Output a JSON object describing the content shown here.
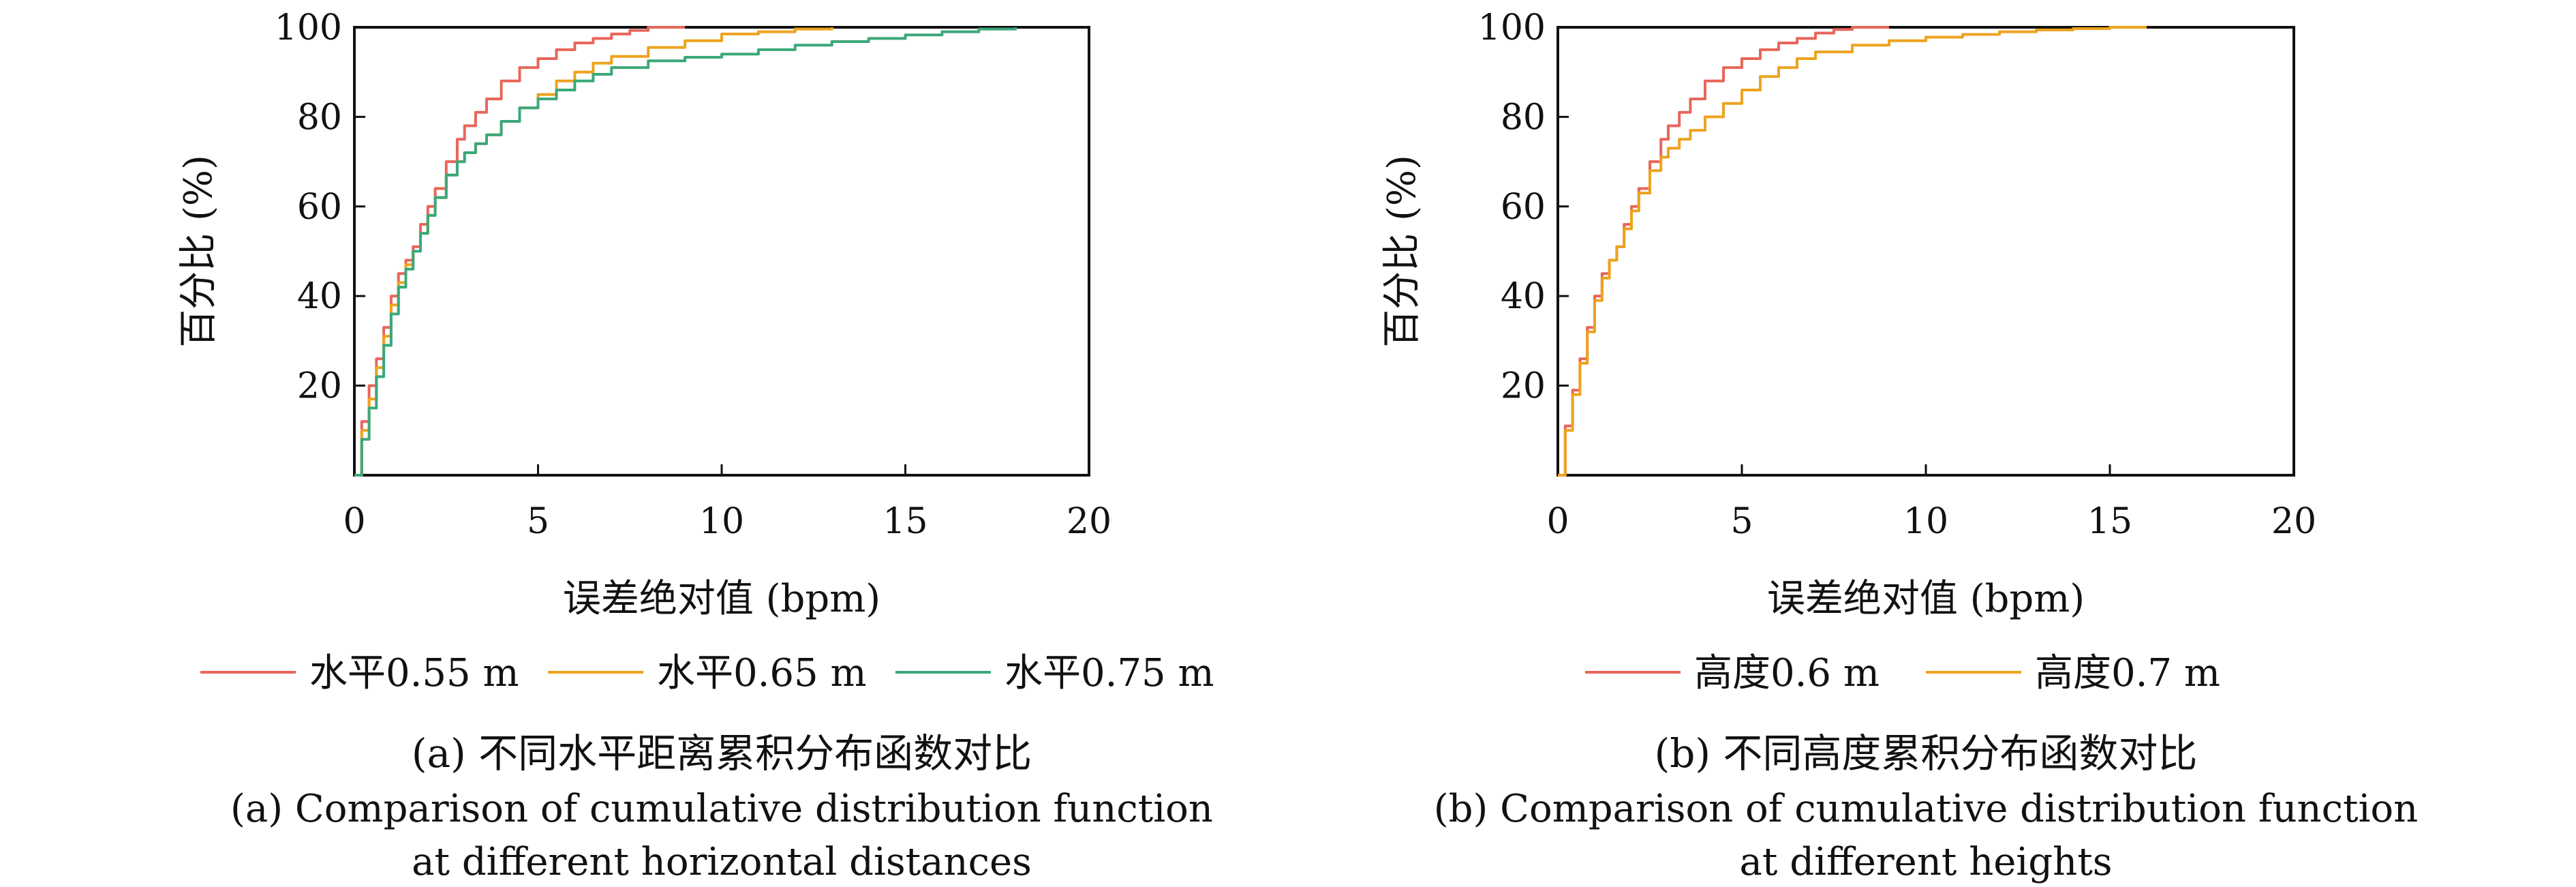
{
  "chart_data": [
    {
      "type": "line",
      "subplot": "a",
      "title": "不同水平距离累积分布函数对比",
      "title_en_line1": "(a) Comparison of cumulative distribution function",
      "title_en_line2": "at different horizontal distances",
      "caption_cn": "(a) 不同水平距离累积分布函数对比",
      "xlabel": "误差绝对值 (bpm)",
      "ylabel": "百分比 (%)",
      "xlim": [
        0,
        20
      ],
      "ylim": [
        0,
        100
      ],
      "xticks": [
        "0",
        "5",
        "10",
        "15",
        "20"
      ],
      "yticks": [
        "20",
        "40",
        "60",
        "80",
        "100"
      ],
      "xtick_values": [
        0,
        5,
        10,
        15,
        20
      ],
      "ytick_values": [
        20,
        40,
        60,
        80,
        100
      ],
      "legend_position": "bottom",
      "series": [
        {
          "name": "水平0.55 m",
          "color": "#e8665a",
          "x": [
            0,
            0.2,
            0.4,
            0.6,
            0.8,
            1.0,
            1.2,
            1.4,
            1.6,
            1.8,
            2.0,
            2.2,
            2.5,
            2.8,
            3.0,
            3.3,
            3.6,
            4.0,
            4.5,
            5.0,
            5.5,
            6.0,
            6.5,
            7.0,
            7.5,
            8.0,
            9.0
          ],
          "y": [
            0,
            12,
            20,
            26,
            33,
            40,
            45,
            48,
            51,
            56,
            60,
            64,
            70,
            75,
            78,
            81,
            84,
            88,
            91,
            93,
            95,
            96.5,
            97.5,
            98.5,
            99.3,
            100,
            100
          ]
        },
        {
          "name": "水平0.65 m",
          "color": "#eda31f",
          "x": [
            0,
            0.2,
            0.4,
            0.6,
            0.8,
            1.0,
            1.2,
            1.4,
            1.6,
            1.8,
            2.0,
            2.2,
            2.5,
            2.8,
            3.0,
            3.3,
            3.6,
            4.0,
            4.5,
            5.0,
            5.5,
            6.0,
            6.5,
            7.0,
            8.0,
            9.0,
            10.0,
            11.0,
            12.0,
            13.0
          ],
          "y": [
            0,
            10,
            17,
            24,
            31,
            38,
            43,
            47,
            50,
            54,
            58,
            62,
            67,
            70,
            72,
            74,
            76,
            79,
            82,
            85,
            88,
            90,
            92,
            93.5,
            95.5,
            97,
            98.5,
            99,
            99.6,
            100
          ]
        },
        {
          "name": "水平0.75 m",
          "color": "#3ba87a",
          "x": [
            0,
            0.2,
            0.4,
            0.6,
            0.8,
            1.0,
            1.2,
            1.4,
            1.6,
            1.8,
            2.0,
            2.2,
            2.5,
            2.8,
            3.0,
            3.3,
            3.6,
            4.0,
            4.5,
            5.0,
            5.5,
            6.0,
            6.5,
            7.0,
            8.0,
            9.0,
            10.0,
            11.0,
            12.0,
            13.0,
            14.0,
            15.0,
            16.0,
            17.0,
            18.0
          ],
          "y": [
            0,
            8,
            15,
            22,
            29,
            36,
            42,
            46,
            50,
            54,
            58,
            62,
            67,
            70,
            72,
            74,
            76,
            79,
            82,
            84,
            86,
            88,
            89.5,
            91,
            92.5,
            93.3,
            94,
            95,
            96,
            96.8,
            97.5,
            98.3,
            99,
            99.6,
            100
          ]
        }
      ]
    },
    {
      "type": "line",
      "subplot": "b",
      "title": "不同高度累积分布函数对比",
      "title_en_line1": "(b) Comparison of cumulative distribution function",
      "title_en_line2": "at different heights",
      "caption_cn": "(b) 不同高度累积分布函数对比",
      "xlabel": "误差绝对值 (bpm)",
      "ylabel": "百分比 (%)",
      "xlim": [
        0,
        20
      ],
      "ylim": [
        0,
        100
      ],
      "xticks": [
        "0",
        "5",
        "10",
        "15",
        "20"
      ],
      "yticks": [
        "20",
        "40",
        "60",
        "80",
        "100"
      ],
      "xtick_values": [
        0,
        5,
        10,
        15,
        20
      ],
      "ytick_values": [
        20,
        40,
        60,
        80,
        100
      ],
      "legend_position": "bottom",
      "series": [
        {
          "name": "高度0.6 m",
          "color": "#e8665a",
          "x": [
            0,
            0.2,
            0.4,
            0.6,
            0.8,
            1.0,
            1.2,
            1.4,
            1.6,
            1.8,
            2.0,
            2.2,
            2.5,
            2.8,
            3.0,
            3.3,
            3.6,
            4.0,
            4.5,
            5.0,
            5.5,
            6.0,
            6.5,
            7.0,
            7.5,
            8.0,
            9.0
          ],
          "y": [
            0,
            11,
            19,
            26,
            33,
            40,
            45,
            48,
            51,
            56,
            60,
            64,
            70,
            75,
            78,
            81,
            84,
            88,
            91,
            93,
            95,
            96.5,
            97.5,
            98.7,
            99.5,
            100,
            100
          ]
        },
        {
          "name": "高度0.7 m",
          "color": "#eda31f",
          "x": [
            0,
            0.2,
            0.4,
            0.6,
            0.8,
            1.0,
            1.2,
            1.4,
            1.6,
            1.8,
            2.0,
            2.2,
            2.5,
            2.8,
            3.0,
            3.3,
            3.6,
            4.0,
            4.5,
            5.0,
            5.5,
            6.0,
            6.5,
            7.0,
            8.0,
            9.0,
            10.0,
            11.0,
            12.0,
            13.0,
            14.0,
            15.0,
            16.0
          ],
          "y": [
            0,
            10,
            18,
            25,
            32,
            39,
            44,
            48,
            51,
            55,
            59,
            63,
            68,
            71,
            73,
            75,
            77,
            80,
            83,
            86,
            89,
            91,
            93,
            94.5,
            96,
            97,
            97.8,
            98.4,
            99,
            99.4,
            99.7,
            100,
            100
          ]
        }
      ]
    }
  ]
}
